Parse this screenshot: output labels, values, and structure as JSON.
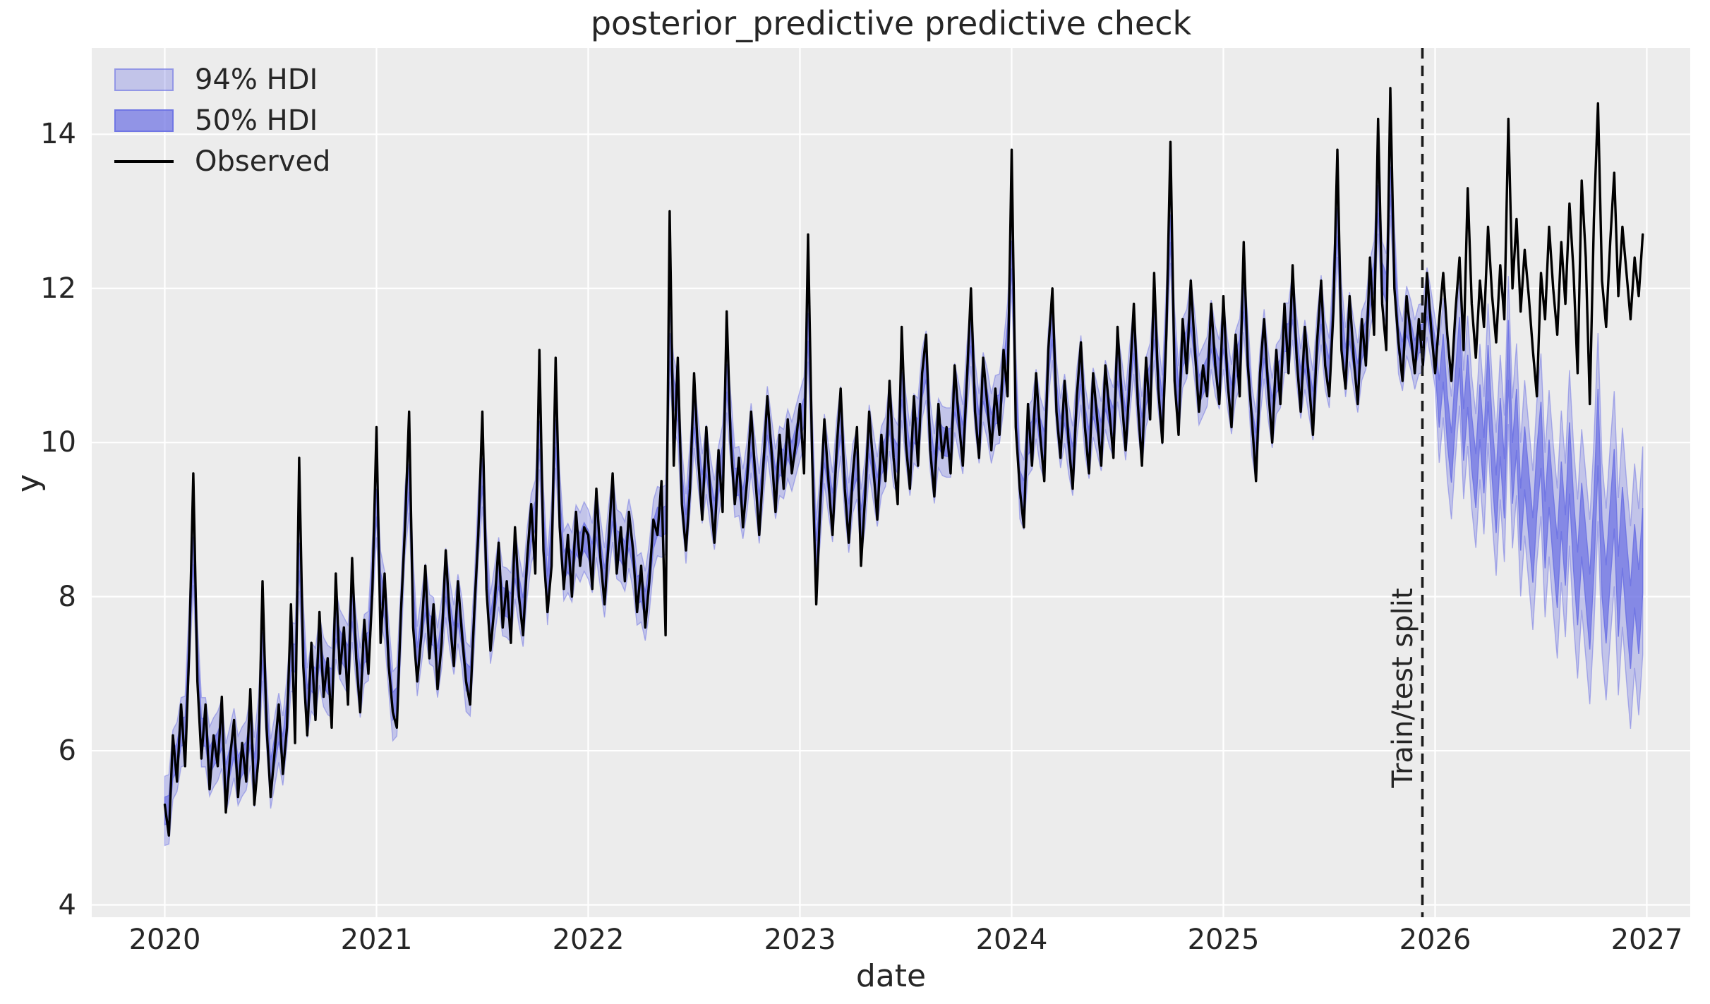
{
  "figure": {
    "title": "posterior_predictive predictive check",
    "background": "#ffffff",
    "plot_background": "#ececec",
    "text_color": "#262626"
  },
  "axes": {
    "xlabel": "date",
    "ylabel": "y",
    "xticks": [
      2020,
      2021,
      2022,
      2023,
      2024,
      2025,
      2026,
      2027
    ],
    "yticks": [
      4,
      6,
      8,
      10,
      12,
      14
    ],
    "xlim": [
      2019.655,
      2027.205
    ],
    "ylim": [
      3.84,
      15.12
    ],
    "grid_color": "#ffffff"
  },
  "legend": {
    "items": [
      {
        "label": "94% HDI",
        "swatch": "hdi94"
      },
      {
        "label": "50% HDI",
        "swatch": "hdi50"
      },
      {
        "label": "Observed",
        "swatch": "line"
      }
    ]
  },
  "annotation": {
    "split_label": "Train/test split",
    "split_x": 2025.94,
    "split_line_color": "#1a1a1a"
  },
  "chart_data": {
    "type": "line",
    "title": "posterior_predictive predictive check",
    "xlabel": "date",
    "ylabel": "y",
    "x_start": 2020.0,
    "x_step": 0.0192307692,
    "series": [
      {
        "name": "Observed",
        "color": "#000000",
        "values": [
          5.3,
          4.9,
          6.2,
          5.6,
          6.6,
          5.8,
          7.3,
          9.6,
          6.9,
          5.9,
          6.6,
          5.5,
          6.2,
          5.8,
          6.7,
          5.2,
          5.9,
          6.4,
          5.4,
          6.1,
          5.6,
          6.8,
          5.3,
          5.9,
          8.2,
          6.3,
          5.4,
          6.0,
          6.6,
          5.7,
          6.3,
          7.9,
          6.1,
          9.8,
          7.1,
          6.2,
          7.4,
          6.4,
          7.8,
          6.7,
          7.2,
          6.3,
          8.3,
          7.0,
          7.6,
          6.6,
          8.5,
          7.2,
          6.5,
          7.7,
          7.0,
          8.1,
          10.2,
          7.4,
          8.3,
          7.1,
          6.5,
          6.3,
          7.8,
          8.9,
          10.4,
          7.6,
          6.9,
          7.5,
          8.4,
          7.2,
          7.9,
          6.8,
          7.4,
          8.6,
          7.7,
          7.1,
          8.2,
          7.5,
          6.9,
          6.6,
          7.8,
          8.8,
          10.4,
          8.1,
          7.3,
          7.9,
          8.7,
          7.6,
          8.2,
          7.4,
          8.9,
          8.0,
          7.5,
          8.5,
          9.2,
          8.3,
          11.2,
          8.6,
          7.8,
          8.4,
          11.1,
          8.9,
          8.1,
          8.8,
          8.0,
          9.1,
          8.4,
          8.9,
          8.8,
          8.1,
          9.4,
          8.5,
          7.9,
          8.7,
          9.6,
          8.3,
          8.9,
          8.2,
          9.1,
          8.6,
          7.8,
          8.4,
          7.6,
          8.2,
          9.0,
          8.8,
          9.5,
          7.5,
          13.0,
          9.7,
          11.1,
          9.2,
          8.6,
          9.4,
          10.9,
          9.8,
          9.0,
          10.2,
          9.3,
          8.7,
          9.9,
          9.1,
          11.7,
          10.0,
          9.2,
          9.8,
          8.9,
          9.5,
          10.4,
          9.6,
          8.8,
          9.7,
          10.6,
          9.9,
          9.1,
          10.1,
          9.4,
          10.3,
          9.6,
          10.0,
          10.5,
          9.6,
          12.7,
          9.8,
          7.9,
          9.2,
          10.3,
          9.5,
          8.8,
          9.9,
          10.7,
          9.4,
          8.7,
          9.6,
          10.2,
          8.4,
          9.3,
          10.4,
          9.7,
          9.0,
          10.1,
          9.5,
          10.8,
          9.8,
          9.2,
          11.5,
          10.0,
          9.4,
          10.6,
          9.7,
          10.9,
          11.4,
          9.9,
          9.3,
          10.5,
          9.8,
          10.2,
          9.6,
          11.0,
          10.3,
          9.7,
          10.8,
          12.0,
          10.4,
          9.8,
          11.1,
          10.5,
          9.9,
          10.7,
          10.1,
          11.2,
          10.6,
          13.8,
          10.2,
          9.4,
          8.9,
          10.5,
          9.7,
          10.9,
          10.1,
          9.5,
          11.2,
          12.0,
          10.4,
          9.8,
          10.8,
          10.0,
          9.4,
          10.6,
          11.3,
          10.2,
          9.6,
          10.9,
          10.3,
          9.7,
          11.0,
          10.4,
          9.8,
          11.5,
          10.6,
          9.9,
          10.8,
          11.8,
          10.5,
          9.7,
          11.1,
          10.3,
          12.2,
          10.7,
          10.0,
          11.4,
          13.9,
          10.8,
          10.1,
          11.6,
          10.9,
          12.1,
          11.2,
          10.4,
          11.0,
          10.6,
          11.8,
          11.0,
          10.5,
          11.9,
          10.8,
          10.2,
          11.4,
          10.6,
          12.6,
          11.0,
          10.3,
          9.5,
          10.9,
          11.6,
          10.7,
          10.0,
          11.2,
          10.5,
          11.8,
          10.9,
          12.3,
          11.1,
          10.4,
          11.5,
          10.8,
          10.1,
          11.3,
          12.1,
          11.0,
          10.6,
          11.7,
          13.8,
          11.2,
          10.7,
          11.9,
          11.1,
          10.5,
          11.6,
          11.0,
          12.4,
          11.4,
          14.2,
          11.8,
          11.2,
          14.6,
          12.0,
          11.3,
          10.8,
          11.9,
          11.4,
          10.9,
          11.6,
          11.0,
          12.2,
          11.5,
          10.9,
          11.6,
          12.2,
          11.4,
          10.8,
          11.7,
          12.4,
          11.2,
          13.3,
          11.8,
          11.1,
          12.1,
          11.5,
          12.8,
          11.9,
          11.3,
          12.3,
          11.6,
          14.2,
          12.0,
          12.9,
          11.7,
          12.5,
          11.9,
          11.2,
          10.6,
          12.2,
          11.6,
          12.8,
          12.0,
          11.4,
          12.6,
          11.8,
          13.1,
          12.2,
          10.9,
          13.4,
          12.4,
          10.5,
          12.9,
          14.4,
          12.1,
          11.5,
          12.6,
          13.5,
          11.9,
          12.8,
          12.2,
          11.6,
          12.4,
          11.9,
          12.7
        ]
      },
      {
        "name": "posterior_predictive_mean_test",
        "color": "#6d72e3",
        "x_start": 2026.0,
        "values": [
          10.9,
          10.5,
          11.1,
          10.3,
          9.8,
          10.6,
          11.3,
          10.1,
          10.8,
          10.0,
          9.5,
          10.4,
          9.7,
          10.9,
          9.9,
          9.2,
          10.2,
          9.4,
          11.2,
          9.6,
          10.3,
          9.0,
          9.8,
          9.2,
          8.6,
          9.5,
          10.1,
          8.8,
          9.6,
          8.9,
          8.3,
          9.3,
          8.6,
          9.8,
          8.8,
          8.1,
          9.0,
          8.4,
          7.8,
          8.8,
          10.2,
          8.5,
          7.9,
          8.7,
          9.4,
          8.0,
          8.9,
          8.2,
          7.6,
          8.4,
          7.8,
          8.6
        ]
      }
    ],
    "bands": {
      "base_color": "#6d72e3",
      "hdi94": {
        "alpha": 0.33,
        "edge_alpha": 0.5,
        "train_halfwidth": 0.45,
        "test_halfwidth_start": 0.75,
        "test_halfwidth_end": 1.35
      },
      "hdi50": {
        "alpha": 0.72,
        "edge_alpha": 0.9,
        "train_halfwidth": 0.18,
        "test_halfwidth_start": 0.3,
        "test_halfwidth_end": 0.55
      },
      "train_center": "smoothed_observed",
      "smooth_weights": [
        0.2,
        0.6,
        0.2
      ],
      "test_start_x": 2026.0
    }
  }
}
